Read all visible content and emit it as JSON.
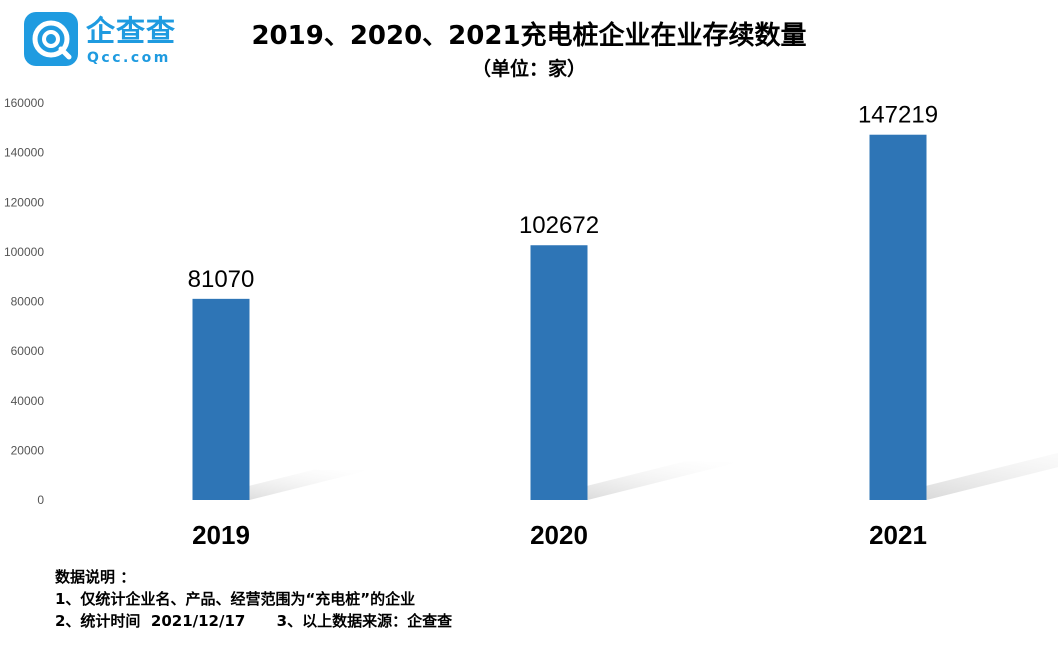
{
  "logo": {
    "cn": "企查查",
    "en": "Qcc.com"
  },
  "header": {
    "title": "2019、2020、2021充电桩企业在业存续数量",
    "subtitle": "（单位：家）"
  },
  "chart_data": {
    "type": "bar",
    "title": "2019、2020、2021充电桩企业在业存续数量",
    "subtitle": "（单位：家）",
    "categories": [
      "2019",
      "2020",
      "2021"
    ],
    "values": [
      81070,
      102672,
      147219
    ],
    "ylim": [
      0,
      160000
    ],
    "yticks": [
      0,
      20000,
      40000,
      60000,
      80000,
      100000,
      120000,
      140000,
      160000
    ],
    "grid": false,
    "legend": "none",
    "bar_color": "#2e75b6",
    "shadow_color": "#dcdcdc"
  },
  "notes": {
    "heading": "数据说明 ：",
    "line1": "1、仅统计企业名、产品、经营范围为“充电桩”的企业",
    "line2": "2、统计时间  2021/12/17      3、以上数据来源：企查查"
  }
}
